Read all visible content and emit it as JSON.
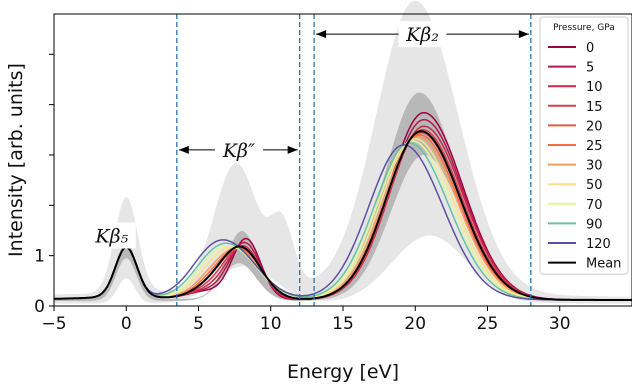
{
  "chart_data": {
    "type": "line",
    "title": "",
    "xlabel": "Energy [eV]",
    "ylabel": "Intensity [arb. units]",
    "xlim": [
      -5,
      35
    ],
    "ylim": [
      0,
      5.8
    ],
    "xticks": [
      -5,
      0,
      5,
      10,
      15,
      20,
      25,
      30
    ],
    "yticks": [
      0,
      1
    ],
    "xtick_labels": [
      "−5",
      "0",
      "5",
      "10",
      "15",
      "20",
      "25",
      "30"
    ],
    "ytick_labels": [
      "0",
      "1"
    ],
    "legend": {
      "title": "Pressure, GPa",
      "placement": "top-right"
    },
    "vlines": [
      3.5,
      12.0,
      13.0,
      28.0
    ],
    "annotations": [
      {
        "text": "Kβ₅",
        "x": -1.0,
        "y": 1.4
      },
      {
        "text": "Kβ″",
        "x": 7.8,
        "y": 3.1
      },
      {
        "text": "Kβ₂",
        "x": 20.5,
        "y": 5.4
      }
    ],
    "arrows": [
      {
        "from": 3.5,
        "to": 12.0,
        "y": 3.1
      },
      {
        "from": 13.0,
        "to": 28.0,
        "y": 5.4
      }
    ],
    "bands": [
      {
        "name": "outer",
        "color": "#e6e6e6"
      },
      {
        "name": "inner",
        "color": "#b8b8b8"
      }
    ],
    "series": [
      {
        "name": "0",
        "color": "#9e0142",
        "kb2": [
          20.6,
          3.72
        ],
        "kbpp": [
          8.3,
          1.2
        ],
        "kbpp_w": 1.0
      },
      {
        "name": "5",
        "color": "#b5194a",
        "kb2": [
          20.6,
          3.58
        ],
        "kbpp": [
          8.2,
          1.12
        ],
        "kbpp_w": 1.1
      },
      {
        "name": "10",
        "color": "#c92a4a",
        "kb2": [
          20.6,
          3.45
        ],
        "kbpp": [
          8.1,
          1.05
        ],
        "kbpp_w": 1.2
      },
      {
        "name": "15",
        "color": "#d53e4f",
        "kb2": [
          20.5,
          3.38
        ],
        "kbpp": [
          8.0,
          1.02
        ],
        "kbpp_w": 1.3
      },
      {
        "name": "20",
        "color": "#e45a48",
        "kb2": [
          20.4,
          3.32
        ],
        "kbpp": [
          7.9,
          1.0
        ],
        "kbpp_w": 1.4
      },
      {
        "name": "25",
        "color": "#f46d43",
        "kb2": [
          20.3,
          3.28
        ],
        "kbpp": [
          7.8,
          0.99
        ],
        "kbpp_w": 1.5
      },
      {
        "name": "30",
        "color": "#fa9b5a",
        "kb2": [
          20.2,
          3.24
        ],
        "kbpp": [
          7.7,
          0.98
        ],
        "kbpp_w": 1.6
      },
      {
        "name": "50",
        "color": "#fee08b",
        "kb2": [
          20.0,
          3.2
        ],
        "kbpp": [
          7.5,
          0.99
        ],
        "kbpp_w": 1.7
      },
      {
        "name": "70",
        "color": "#e6f598",
        "kb2": [
          19.8,
          3.16
        ],
        "kbpp": [
          7.3,
          1.01
        ],
        "kbpp_w": 1.8
      },
      {
        "name": "90",
        "color": "#66c2a5",
        "kb2": [
          19.6,
          3.12
        ],
        "kbpp": [
          7.2,
          1.05
        ],
        "kbpp_w": 1.9
      },
      {
        "name": "120",
        "color": "#5e4fa2",
        "kb2": [
          19.2,
          3.08
        ],
        "kbpp": [
          7.0,
          1.1
        ],
        "kbpp_w": 2.0
      },
      {
        "name": "Mean",
        "color": "#000000",
        "kb2": [
          20.4,
          3.35
        ],
        "kbpp": [
          7.9,
          1.03
        ],
        "kbpp_w": 1.4
      }
    ]
  }
}
